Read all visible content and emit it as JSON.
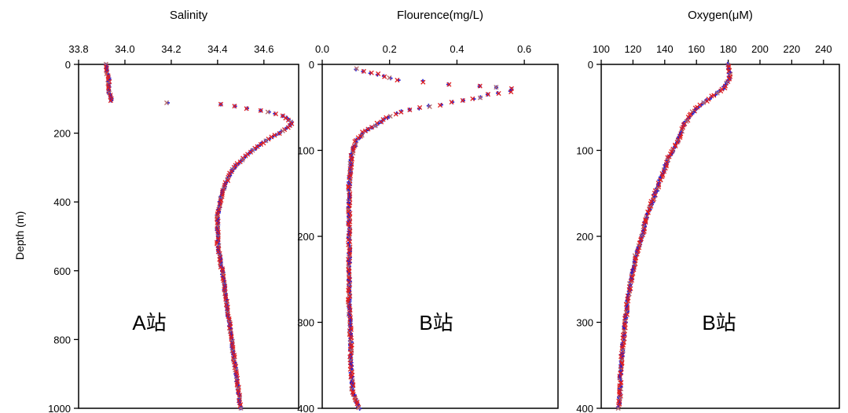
{
  "chart_data": [
    {
      "type": "scatter",
      "title": "Salinity",
      "xlabel": "",
      "ylabel": "Depth (m)",
      "xlim": [
        33.8,
        34.75
      ],
      "ylim": [
        1000,
        0
      ],
      "x_ticks": [
        "33.8",
        "34.0",
        "34.2",
        "34.4",
        "34.6"
      ],
      "y_ticks": [
        "0",
        "200",
        "400",
        "600",
        "800",
        "1000"
      ],
      "station": "A站",
      "profile": [
        [
          33.92,
          0
        ],
        [
          33.92,
          20
        ],
        [
          33.93,
          40
        ],
        [
          33.93,
          60
        ],
        [
          33.93,
          80
        ],
        [
          33.94,
          100
        ],
        [
          33.94,
          110
        ],
        [
          34.1,
          110
        ],
        [
          34.25,
          112
        ],
        [
          34.4,
          115
        ],
        [
          34.5,
          125
        ],
        [
          34.6,
          135
        ],
        [
          34.68,
          150
        ],
        [
          34.72,
          165
        ],
        [
          34.72,
          175
        ],
        [
          34.69,
          190
        ],
        [
          34.65,
          205
        ],
        [
          34.6,
          225
        ],
        [
          34.55,
          250
        ],
        [
          34.5,
          280
        ],
        [
          34.46,
          310
        ],
        [
          34.44,
          340
        ],
        [
          34.42,
          370
        ],
        [
          34.41,
          400
        ],
        [
          34.4,
          440
        ],
        [
          34.4,
          480
        ],
        [
          34.4,
          520
        ],
        [
          34.41,
          560
        ],
        [
          34.42,
          600
        ],
        [
          34.43,
          650
        ],
        [
          34.44,
          700
        ],
        [
          34.45,
          750
        ],
        [
          34.46,
          800
        ],
        [
          34.47,
          850
        ],
        [
          34.48,
          900
        ],
        [
          34.49,
          950
        ],
        [
          34.5,
          1000
        ]
      ]
    },
    {
      "type": "scatter",
      "title": "Flourence(mg/L)",
      "xlabel": "",
      "ylabel": "",
      "xlim": [
        0.0,
        0.7
      ],
      "ylim": [
        400,
        0
      ],
      "x_ticks": [
        "0.0",
        "0.2",
        "0.4",
        "0.6"
      ],
      "y_ticks": [
        "0",
        "100",
        "200",
        "300",
        "400"
      ],
      "station": "B站",
      "profile": [
        [
          0.1,
          5
        ],
        [
          0.15,
          10
        ],
        [
          0.22,
          18
        ],
        [
          0.35,
          22
        ],
        [
          0.48,
          25
        ],
        [
          0.58,
          30
        ],
        [
          0.5,
          35
        ],
        [
          0.45,
          40
        ],
        [
          0.38,
          45
        ],
        [
          0.3,
          50
        ],
        [
          0.24,
          55
        ],
        [
          0.2,
          60
        ],
        [
          0.16,
          70
        ],
        [
          0.12,
          80
        ],
        [
          0.1,
          90
        ],
        [
          0.09,
          100
        ],
        [
          0.085,
          115
        ],
        [
          0.08,
          140
        ],
        [
          0.08,
          170
        ],
        [
          0.08,
          200
        ],
        [
          0.08,
          240
        ],
        [
          0.08,
          280
        ],
        [
          0.085,
          320
        ],
        [
          0.085,
          350
        ],
        [
          0.09,
          380
        ],
        [
          0.11,
          400
        ]
      ]
    },
    {
      "type": "scatter",
      "title": "Oxygen(μM)",
      "xlabel": "",
      "ylabel": "",
      "xlim": [
        100,
        250
      ],
      "ylim": [
        400,
        0
      ],
      "x_ticks": [
        "100",
        "120",
        "140",
        "160",
        "180",
        "200",
        "220",
        "240"
      ],
      "y_ticks": [
        "0",
        "100",
        "200",
        "300",
        "400"
      ],
      "station": "B站",
      "profile": [
        [
          180,
          0
        ],
        [
          181,
          10
        ],
        [
          180,
          20
        ],
        [
          176,
          30
        ],
        [
          168,
          40
        ],
        [
          160,
          50
        ],
        [
          156,
          60
        ],
        [
          152,
          70
        ],
        [
          150,
          80
        ],
        [
          148,
          90
        ],
        [
          145,
          100
        ],
        [
          142,
          110
        ],
        [
          140,
          120
        ],
        [
          138,
          130
        ],
        [
          136,
          140
        ],
        [
          134,
          150
        ],
        [
          132,
          160
        ],
        [
          130,
          170
        ],
        [
          128,
          180
        ],
        [
          127,
          190
        ],
        [
          126,
          200
        ],
        [
          124,
          210
        ],
        [
          122,
          220
        ],
        [
          121,
          230
        ],
        [
          120,
          240
        ],
        [
          119,
          250
        ],
        [
          118,
          260
        ],
        [
          117,
          270
        ],
        [
          116,
          280
        ],
        [
          116,
          290
        ],
        [
          115,
          300
        ],
        [
          114,
          320
        ],
        [
          113,
          340
        ],
        [
          112,
          360
        ],
        [
          112,
          380
        ],
        [
          111,
          400
        ]
      ]
    }
  ],
  "colors": {
    "series_plus": "#1f1fd6",
    "series_x": "#e0201f",
    "series_x_faded": "#b56a6a",
    "axis": "#000000"
  }
}
